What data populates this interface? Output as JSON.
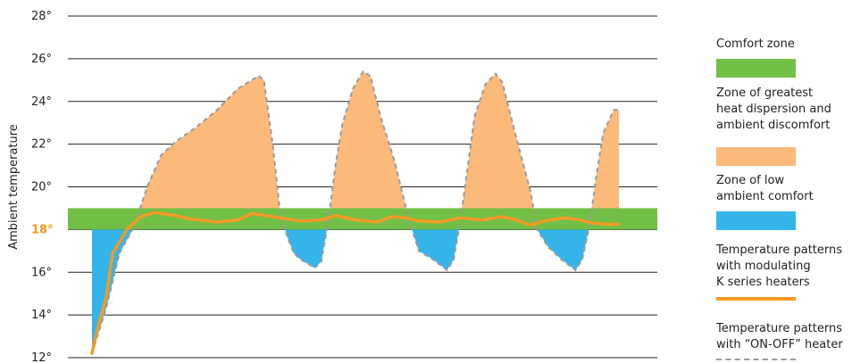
{
  "colors": {
    "comfort": "#72bf45",
    "dispersion": "#fbb97a",
    "low": "#33b5ea",
    "modulating": "#f39a24",
    "onoff": "#9a9a9a",
    "highlight_tick": "#f39a24",
    "grid": "#222222"
  },
  "chart_data": {
    "type": "area",
    "title": "",
    "xlabel": "",
    "ylabel": "Ambient temperature",
    "ylim": [
      12,
      28
    ],
    "y_ticks": [
      "12°",
      "14°",
      "16°",
      "18°",
      "20°",
      "22°",
      "24°",
      "26°",
      "28°"
    ],
    "highlight_tick": "18°",
    "comfort_band": [
      18,
      19
    ],
    "grid": true,
    "legend_position": "right",
    "series": [
      {
        "name": "Temperature patterns with “ON-OFF” heater",
        "style": "dashed",
        "points": [
          [
            0.0,
            12.2
          ],
          [
            2.5,
            14.3
          ],
          [
            4.9,
            16.9
          ],
          [
            7.4,
            18.1
          ],
          [
            9.8,
            20.0
          ],
          [
            12.3,
            21.5
          ],
          [
            14.8,
            22.1
          ],
          [
            18.5,
            22.8
          ],
          [
            22.2,
            23.6
          ],
          [
            25.9,
            24.6
          ],
          [
            29.6,
            25.2
          ],
          [
            30.5,
            25.0
          ],
          [
            32.1,
            21.9
          ],
          [
            33.3,
            19.0
          ],
          [
            34.6,
            17.7
          ],
          [
            35.8,
            16.9
          ],
          [
            37.0,
            16.6
          ],
          [
            38.3,
            16.4
          ],
          [
            39.5,
            16.2
          ],
          [
            40.7,
            16.5
          ],
          [
            42.0,
            18.5
          ],
          [
            43.2,
            21.0
          ],
          [
            44.4,
            22.9
          ],
          [
            46.3,
            24.6
          ],
          [
            48.1,
            25.4
          ],
          [
            49.4,
            25.2
          ],
          [
            51.2,
            23.3
          ],
          [
            53.7,
            21.2
          ],
          [
            56.2,
            18.5
          ],
          [
            58.0,
            17.0
          ],
          [
            60.5,
            16.6
          ],
          [
            63.0,
            16.1
          ],
          [
            64.2,
            16.6
          ],
          [
            65.4,
            18.5
          ],
          [
            66.7,
            21.0
          ],
          [
            67.9,
            23.3
          ],
          [
            69.8,
            24.8
          ],
          [
            71.6,
            25.3
          ],
          [
            72.8,
            24.9
          ],
          [
            75.3,
            22.3
          ],
          [
            77.8,
            19.8
          ],
          [
            79.0,
            18.0
          ],
          [
            80.9,
            17.2
          ],
          [
            83.3,
            16.6
          ],
          [
            85.8,
            16.1
          ],
          [
            87.0,
            16.6
          ],
          [
            88.3,
            18.2
          ],
          [
            89.5,
            20.5
          ],
          [
            90.7,
            22.5
          ],
          [
            92.6,
            23.6
          ],
          [
            93.5,
            23.6
          ]
        ]
      },
      {
        "name": "Temperature patterns with modulating K series heaters",
        "style": "solid",
        "points": [
          [
            0.0,
            12.2
          ],
          [
            1.2,
            13.6
          ],
          [
            2.5,
            14.8
          ],
          [
            3.7,
            16.9
          ],
          [
            6.2,
            18.0
          ],
          [
            8.6,
            18.6
          ],
          [
            11.1,
            18.8
          ],
          [
            14.8,
            18.65
          ],
          [
            17.3,
            18.5
          ],
          [
            22.2,
            18.35
          ],
          [
            25.9,
            18.45
          ],
          [
            28.4,
            18.75
          ],
          [
            33.3,
            18.55
          ],
          [
            37.0,
            18.4
          ],
          [
            40.7,
            18.45
          ],
          [
            43.2,
            18.65
          ],
          [
            46.9,
            18.45
          ],
          [
            50.6,
            18.35
          ],
          [
            53.1,
            18.6
          ],
          [
            55.6,
            18.55
          ],
          [
            58.0,
            18.4
          ],
          [
            61.7,
            18.35
          ],
          [
            65.4,
            18.55
          ],
          [
            69.1,
            18.45
          ],
          [
            72.8,
            18.6
          ],
          [
            75.3,
            18.45
          ],
          [
            77.8,
            18.2
          ],
          [
            80.2,
            18.4
          ],
          [
            83.9,
            18.55
          ],
          [
            86.4,
            18.45
          ],
          [
            88.9,
            18.3
          ],
          [
            91.4,
            18.25
          ],
          [
            93.5,
            18.25
          ]
        ]
      }
    ],
    "legend": [
      {
        "key": "comfort",
        "label": "Comfort zone",
        "kind": "box"
      },
      {
        "key": "dispersion",
        "label": "Zone of greatest\nheat dispersion and\nambient discomfort",
        "kind": "box"
      },
      {
        "key": "low",
        "label": "Zone of low\nambient comfort",
        "kind": "box"
      },
      {
        "key": "modulating",
        "label": "Temperature patterns\nwith modulating\nK series heaters",
        "kind": "line"
      },
      {
        "key": "onoff",
        "label": "Temperature patterns\nwith “ON-OFF” heater",
        "kind": "dashed"
      }
    ]
  }
}
